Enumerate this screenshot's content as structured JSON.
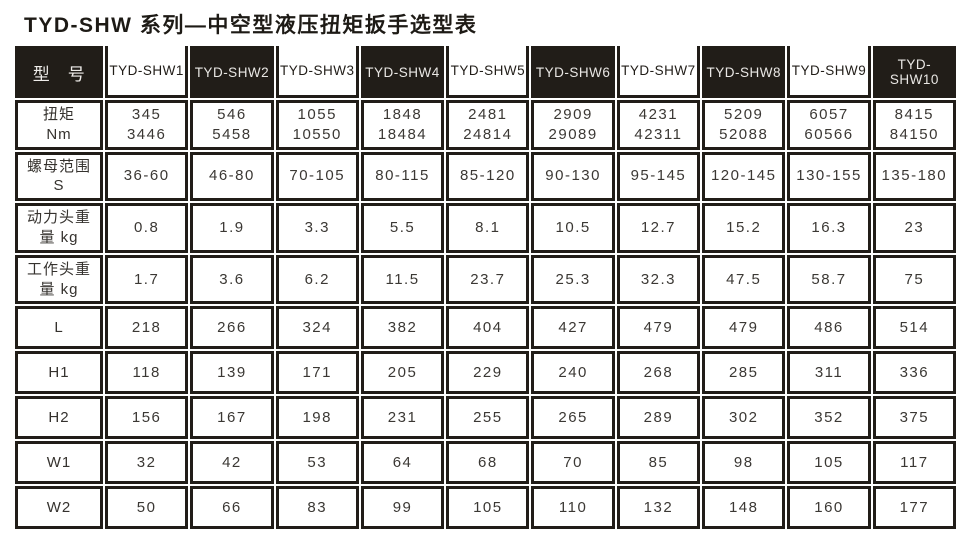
{
  "title": "TYD-SHW 系列—中空型液压扭矩扳手选型表",
  "colors": {
    "table_black": "#211d18",
    "body_text": "#3b3834",
    "background": "#ffffff"
  },
  "table": {
    "corner_label": "型　号",
    "columns": [
      "TYD-SHW1",
      "TYD-SHW2",
      "TYD-SHW3",
      "TYD-SHW4",
      "TYD-SHW5",
      "TYD-SHW6",
      "TYD-SHW7",
      "TYD-SHW8",
      "TYD-SHW9",
      "TYD-SHW10"
    ],
    "rows": [
      {
        "label": "扭矩\nNm",
        "values": [
          "345\n3446",
          "546\n5458",
          "1055\n10550",
          "1848\n18484",
          "2481\n24814",
          "2909\n29089",
          "4231\n42311",
          "5209\n52088",
          "6057\n60566",
          "8415\n84150"
        ]
      },
      {
        "label": "螺母范围\nS",
        "values": [
          "36-60",
          "46-80",
          "70-105",
          "80-115",
          "85-120",
          "90-130",
          "95-145",
          "120-145",
          "130-155",
          "135-180"
        ]
      },
      {
        "label": "动力头重\n量 kg",
        "values": [
          "0.8",
          "1.9",
          "3.3",
          "5.5",
          "8.1",
          "10.5",
          "12.7",
          "15.2",
          "16.3",
          "23"
        ]
      },
      {
        "label": "工作头重\n量 kg",
        "values": [
          "1.7",
          "3.6",
          "6.2",
          "11.5",
          "23.7",
          "25.3",
          "32.3",
          "47.5",
          "58.7",
          "75"
        ]
      },
      {
        "label": "L",
        "values": [
          "218",
          "266",
          "324",
          "382",
          "404",
          "427",
          "479",
          "479",
          "486",
          "514"
        ]
      },
      {
        "label": "H1",
        "values": [
          "118",
          "139",
          "171",
          "205",
          "229",
          "240",
          "268",
          "285",
          "311",
          "336"
        ]
      },
      {
        "label": "H2",
        "values": [
          "156",
          "167",
          "198",
          "231",
          "255",
          "265",
          "289",
          "302",
          "352",
          "375"
        ]
      },
      {
        "label": "W1",
        "values": [
          "32",
          "42",
          "53",
          "64",
          "68",
          "70",
          "85",
          "98",
          "105",
          "117"
        ]
      },
      {
        "label": "W2",
        "values": [
          "50",
          "66",
          "83",
          "99",
          "105",
          "110",
          "132",
          "148",
          "160",
          "177"
        ]
      }
    ]
  }
}
